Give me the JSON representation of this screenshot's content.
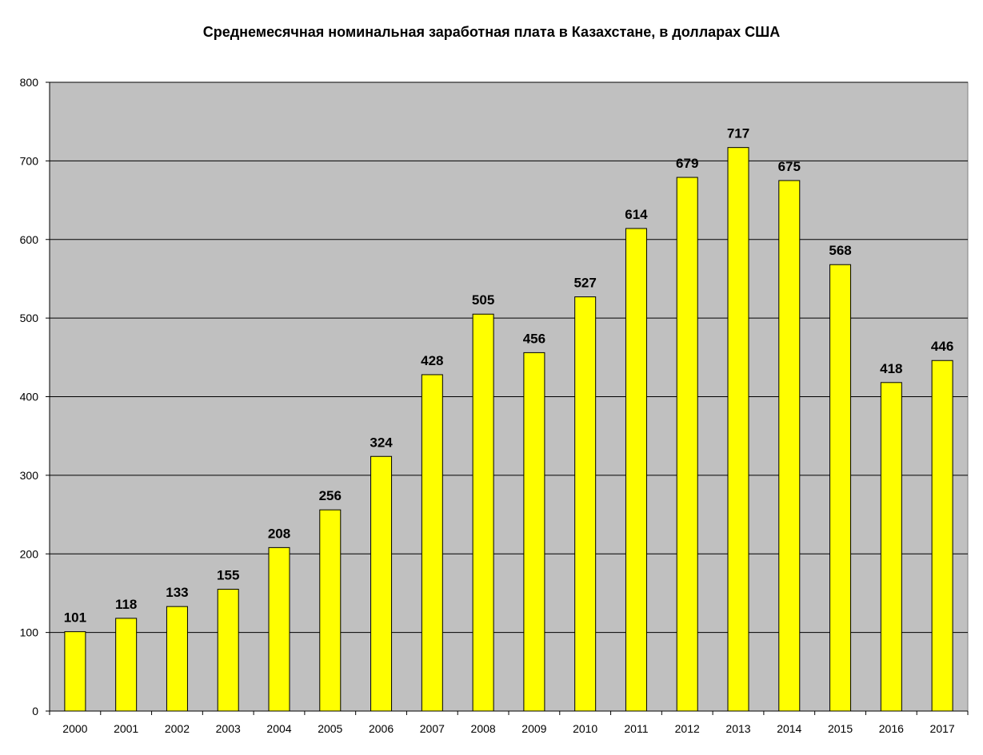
{
  "chart_data": {
    "type": "bar",
    "title": "Среднемесячная номинальная заработная плата в Казахстане, в долларах США",
    "xlabel": "",
    "ylabel": "",
    "categories": [
      "2000",
      "2001",
      "2002",
      "2003",
      "2004",
      "2005",
      "2006",
      "2007",
      "2008",
      "2009",
      "2010",
      "2011",
      "2012",
      "2013",
      "2014",
      "2015",
      "2016",
      "2017"
    ],
    "values": [
      101,
      118,
      133,
      155,
      208,
      256,
      324,
      428,
      505,
      456,
      527,
      614,
      679,
      717,
      675,
      568,
      418,
      446
    ],
    "ylim": [
      0,
      800
    ],
    "yticks": [
      0,
      100,
      200,
      300,
      400,
      500,
      600,
      700,
      800
    ],
    "grid": true,
    "legend": "none",
    "colors": {
      "bar": "#ffff00",
      "bar_stroke": "#000000",
      "plot_background": "#c0c0c0",
      "gridline": "#000000"
    }
  }
}
